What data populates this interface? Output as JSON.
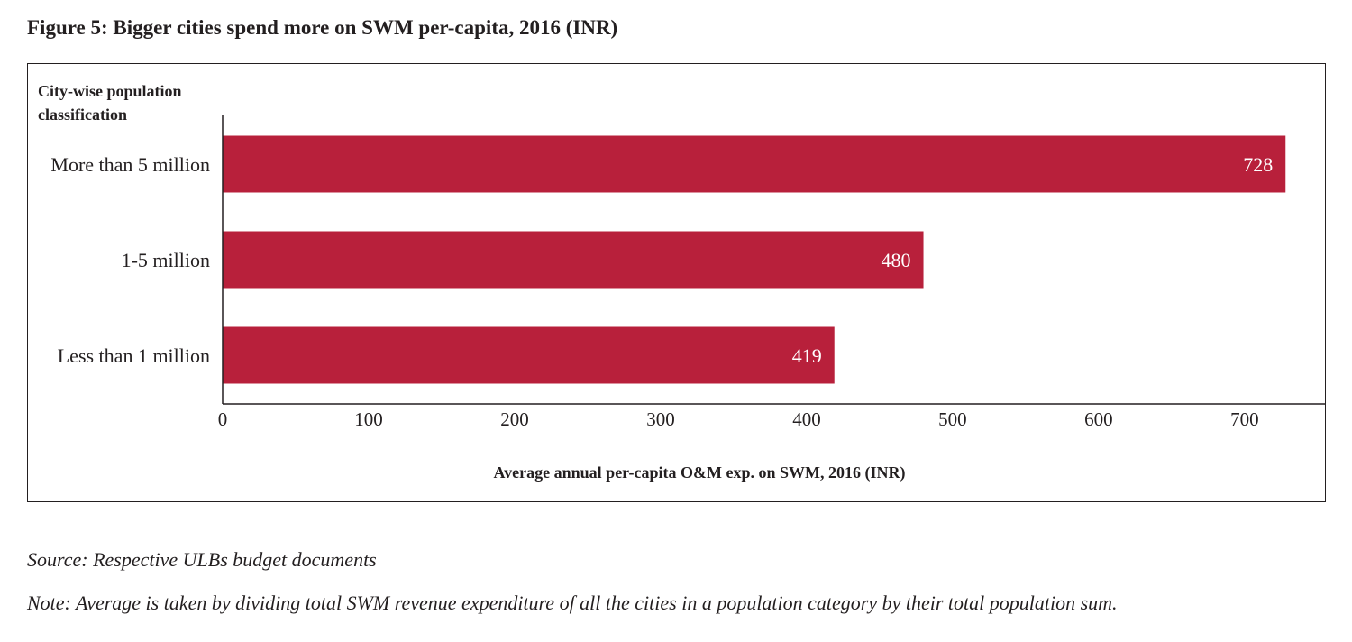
{
  "title": "Figure 5: Bigger cities spend more on SWM per-capita, 2016 (INR)",
  "chart_data": {
    "type": "bar",
    "orientation": "horizontal",
    "title": "Figure 5: Bigger cities spend more on SWM per-capita, 2016 (INR)",
    "ylabel_line1": "City-wise population",
    "ylabel_line2": "classification",
    "xlabel": "Average annual per-capita O&M exp. on SWM, 2016 (INR)",
    "categories": [
      "More than 5 million",
      "1-5 million",
      "Less than 1 million"
    ],
    "values": [
      728,
      480,
      419
    ],
    "value_labels": [
      "728",
      "480",
      "419"
    ],
    "xticks": [
      "0",
      "100",
      "200",
      "300",
      "400",
      "500",
      "600",
      "700"
    ],
    "xlim": [
      0,
      755
    ],
    "grid": false,
    "bar_color": "#b8203b"
  },
  "source": "Source: Respective ULBs budget documents",
  "note": "Note: Average is taken by dividing total SWM revenue expenditure of all the cities in a population category by their total population sum."
}
